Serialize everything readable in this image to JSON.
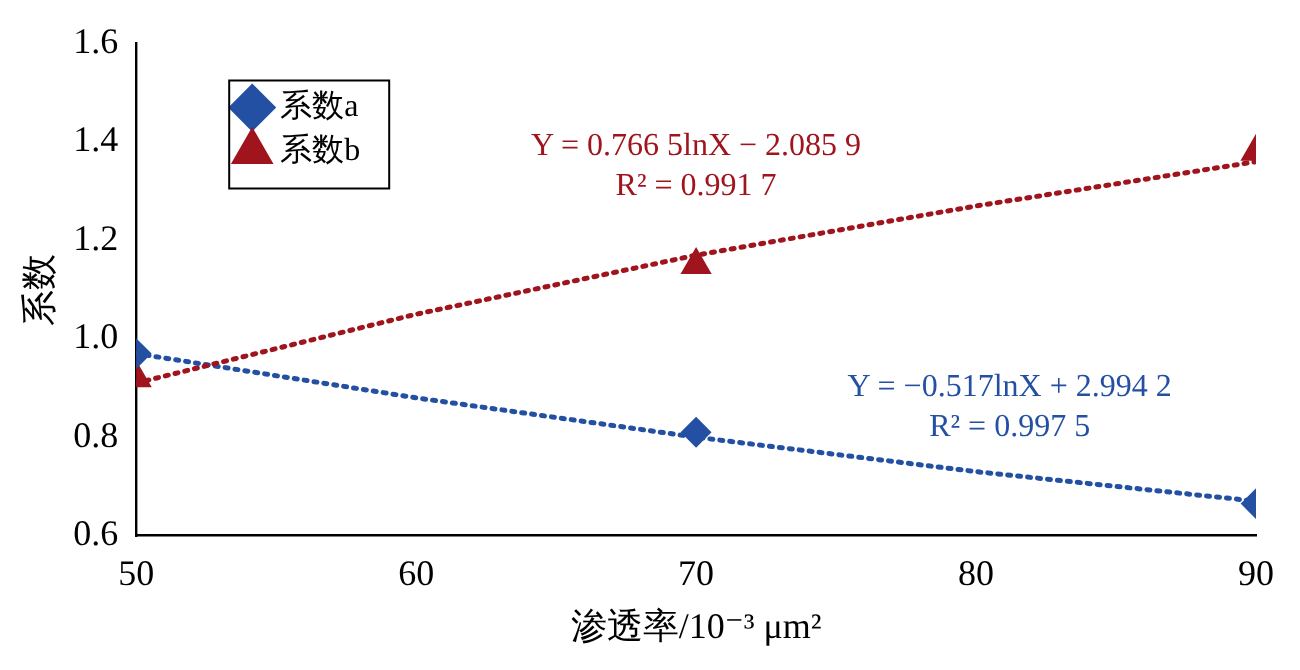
{
  "chart_data": {
    "type": "scatter",
    "xlabel": "渗透率/10⁻³ μm²",
    "ylabel": "系数",
    "xlim": [
      50,
      90
    ],
    "xticks": [
      50,
      60,
      70,
      80,
      90
    ],
    "ylim": [
      0.6,
      1.6
    ],
    "yticks": [
      0.6,
      0.8,
      {
        "value": 1.0,
        "label": "1.0"
      },
      1.2,
      1.4,
      1.6
    ],
    "grid": false,
    "legend": "top left",
    "series": [
      {
        "name": "系数a",
        "marker": "diamond",
        "color": "#2450a4",
        "x": [
          50,
          70,
          90
        ],
        "values": [
          0.97,
          0.81,
          0.665
        ]
      },
      {
        "name": "系数b",
        "marker": "triangle",
        "color": "#a0141e",
        "x": [
          50,
          70,
          90
        ],
        "values": [
          0.92,
          1.15,
          1.38
        ]
      },
      {
        "type": "line",
        "line_style": "dotted",
        "marker": "none",
        "color": "#a0141e",
        "x": [
          50,
          60,
          70,
          80,
          90
        ],
        "values": [
          0.91,
          1.05,
          1.17,
          1.27,
          1.36
        ]
      },
      {
        "type": "line",
        "line_style": "dotted",
        "marker": "none",
        "color": "#2450a4",
        "x": [
          50,
          60,
          70,
          80,
          90
        ],
        "values": [
          0.97,
          0.88,
          0.8,
          0.73,
          0.67
        ]
      }
    ],
    "annotations": [
      "Y = 0.766 5lnX − 2.085 9",
      "R² = 0.991 7",
      "Y = −0.517lnX + 2.994 2",
      "R² = 0.997 5"
    ]
  }
}
